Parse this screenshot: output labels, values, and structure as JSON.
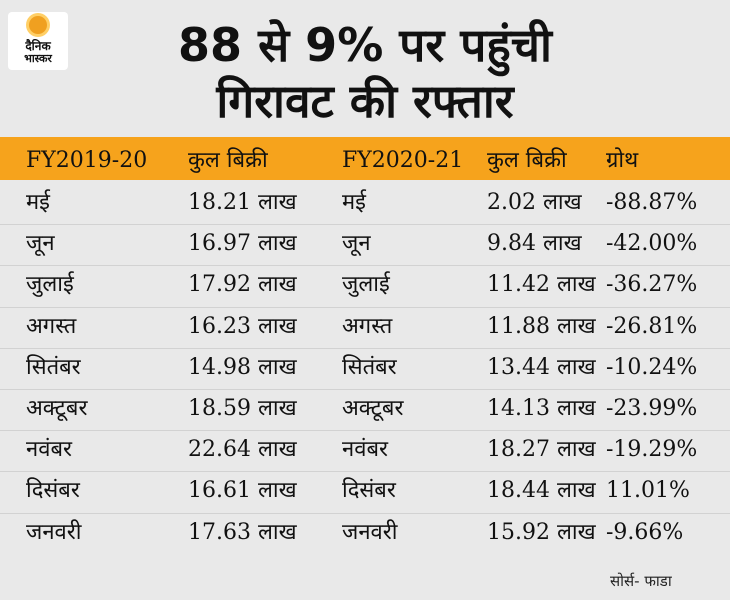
{
  "logo": {
    "line1": "दैनिक",
    "line2": "भास्कर"
  },
  "title": {
    "line1": "88 से 9% पर पहुंची",
    "line2": "गिरावट की रफ्तार"
  },
  "chart_data": {
    "type": "table",
    "columns": [
      "FY2019-20",
      "कुल बिक्री",
      "FY2020-21",
      "कुल बिक्री",
      "ग्रोथ"
    ],
    "rows": [
      [
        "मई",
        "18.21 लाख",
        "मई",
        "2.02 लाख",
        "-88.87%"
      ],
      [
        "जून",
        "16.97 लाख",
        "जून",
        "9.84 लाख",
        "-42.00%"
      ],
      [
        "जुलाई",
        "17.92 लाख",
        "जुलाई",
        "11.42 लाख",
        "-36.27%"
      ],
      [
        "अगस्त",
        "16.23 लाख",
        "अगस्त",
        "11.88 लाख",
        "-26.81%"
      ],
      [
        "सितंबर",
        "14.98 लाख",
        "सितंबर",
        "13.44 लाख",
        "-10.24%"
      ],
      [
        "अक्टूबर",
        "18.59 लाख",
        "अक्टूबर",
        "14.13 लाख",
        "-23.99%"
      ],
      [
        "नवंबर",
        "22.64 लाख",
        "नवंबर",
        "18.27 लाख",
        "-19.29%"
      ],
      [
        "दिसंबर",
        "16.61 लाख",
        "दिसंबर",
        "18.44 लाख",
        "11.01%"
      ],
      [
        "जनवरी",
        "17.63 लाख",
        "जनवरी",
        "15.92 लाख",
        "-9.66%"
      ]
    ]
  },
  "source": "सोर्स- फाडा",
  "colors": {
    "header": "#f6a31c",
    "background": "#e9e9e9",
    "text": "#111111"
  }
}
